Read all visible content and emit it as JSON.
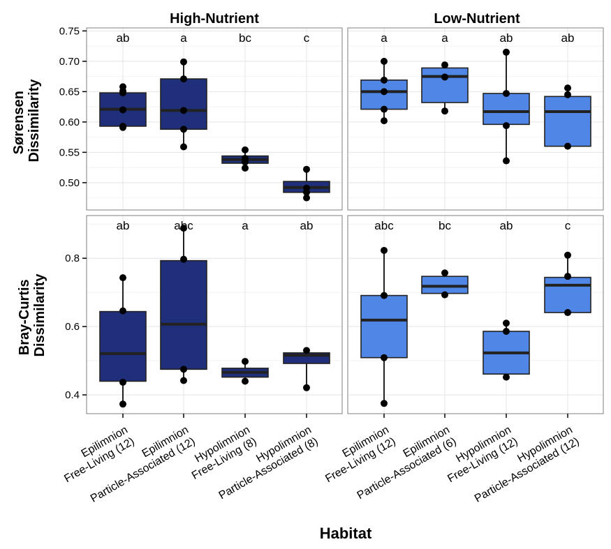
{
  "chart_data": {
    "type": "box",
    "xlabel": "Habitat",
    "colors": {
      "high": "#1f2f7a",
      "low": "#5086e6",
      "median": "#222222",
      "point": "#000000",
      "grid_major": "#e6e6e6",
      "grid_minor": "#f2f2f2",
      "panel_border": "#7f7f7f"
    },
    "columns": [
      "High-Nutrient",
      "Low-Nutrient"
    ],
    "rows": [
      {
        "ylabel": [
          "Sørensen",
          "Dissimilarity"
        ],
        "ylim": [
          0.455,
          0.755
        ],
        "ticks": [
          0.5,
          0.55,
          0.6,
          0.65,
          0.7,
          0.75
        ],
        "tick_labels": [
          "0.50",
          "0.55",
          "0.60",
          "0.65",
          "0.70",
          "0.75"
        ]
      },
      {
        "ylabel": [
          "Bray-Curtis",
          "Dissimilarity"
        ],
        "ylim": [
          0.345,
          0.925
        ],
        "ticks": [
          0.4,
          0.6,
          0.8
        ],
        "tick_labels": [
          "0.4",
          "0.6",
          "0.8"
        ]
      }
    ],
    "categories": {
      "High-Nutrient": [
        [
          "Epilimnion",
          "Free-Living (12)"
        ],
        [
          "Epilimnion",
          "Particle-Associated (12)"
        ],
        [
          "Hypolimnion",
          "Free-Living (8)"
        ],
        [
          "Hypolimnion",
          "Particle-Associated (8)"
        ]
      ],
      "Low-Nutrient": [
        [
          "Epilimnion",
          "Free-Living (12)"
        ],
        [
          "Epilimnion",
          "Particle-Associated (6)"
        ],
        [
          "Hypolimnion",
          "Free-Living (12)"
        ],
        [
          "Hypolimnion",
          "Particle-Associated (12)"
        ]
      ]
    },
    "panels": [
      {
        "row": 0,
        "col": 0,
        "fill": "high",
        "letters": [
          "ab",
          "a",
          "bc",
          "c"
        ],
        "boxes": [
          {
            "low": 0.591,
            "q1": 0.593,
            "median": 0.621,
            "q3": 0.648,
            "high": 0.658,
            "points": [
              0.591,
              0.593,
              0.62,
              0.648,
              0.651,
              0.658
            ]
          },
          {
            "low": 0.559,
            "q1": 0.588,
            "median": 0.619,
            "q3": 0.671,
            "high": 0.699,
            "points": [
              0.559,
              0.588,
              0.619,
              0.671,
              0.699
            ]
          },
          {
            "low": 0.524,
            "q1": 0.532,
            "median": 0.538,
            "q3": 0.544,
            "high": 0.554,
            "points": [
              0.524,
              0.534,
              0.54,
              0.554
            ]
          },
          {
            "low": 0.475,
            "q1": 0.484,
            "median": 0.492,
            "q3": 0.502,
            "high": 0.522,
            "points": [
              0.475,
              0.484,
              0.491,
              0.522
            ]
          }
        ]
      },
      {
        "row": 0,
        "col": 1,
        "fill": "low",
        "letters": [
          "a",
          "a",
          "ab",
          "ab"
        ],
        "boxes": [
          {
            "low": 0.602,
            "q1": 0.621,
            "median": 0.65,
            "q3": 0.669,
            "high": 0.7,
            "points": [
              0.602,
              0.621,
              0.65,
              0.669,
              0.7
            ]
          },
          {
            "low": 0.618,
            "q1": 0.632,
            "median": 0.675,
            "q3": 0.689,
            "high": 0.694,
            "points": [
              0.618,
              0.674,
              0.694
            ]
          },
          {
            "low": 0.536,
            "q1": 0.596,
            "median": 0.617,
            "q3": 0.647,
            "high": 0.715,
            "points": [
              0.536,
              0.594,
              0.647,
              0.715
            ]
          },
          {
            "low": 0.56,
            "q1": 0.56,
            "median": 0.617,
            "q3": 0.642,
            "high": 0.656,
            "points": [
              0.56,
              0.645,
              0.656
            ]
          }
        ]
      },
      {
        "row": 1,
        "col": 0,
        "fill": "high",
        "letters": [
          "ab",
          "abc",
          "a",
          "ab"
        ],
        "boxes": [
          {
            "low": 0.373,
            "q1": 0.44,
            "median": 0.521,
            "q3": 0.644,
            "high": 0.743,
            "points": [
              0.373,
              0.437,
              0.646,
              0.743
            ]
          },
          {
            "low": 0.442,
            "q1": 0.475,
            "median": 0.607,
            "q3": 0.793,
            "high": 0.888,
            "points": [
              0.442,
              0.475,
              0.797,
              0.888
            ]
          },
          {
            "low": 0.44,
            "q1": 0.452,
            "median": 0.466,
            "q3": 0.478,
            "high": 0.498,
            "points": [
              0.44,
              0.498
            ]
          },
          {
            "low": 0.421,
            "q1": 0.492,
            "median": 0.516,
            "q3": 0.523,
            "high": 0.53,
            "points": [
              0.421,
              0.53
            ]
          }
        ]
      },
      {
        "row": 1,
        "col": 1,
        "fill": "low",
        "letters": [
          "abc",
          "bc",
          "ab",
          "c"
        ],
        "boxes": [
          {
            "low": 0.375,
            "q1": 0.509,
            "median": 0.619,
            "q3": 0.691,
            "high": 0.823,
            "points": [
              0.375,
              0.509,
              0.691,
              0.823
            ]
          },
          {
            "low": 0.693,
            "q1": 0.697,
            "median": 0.718,
            "q3": 0.747,
            "high": 0.757,
            "points": [
              0.693,
              0.757
            ]
          },
          {
            "low": 0.452,
            "q1": 0.461,
            "median": 0.523,
            "q3": 0.586,
            "high": 0.61,
            "points": [
              0.452,
              0.586,
              0.61
            ]
          },
          {
            "low": 0.641,
            "q1": 0.641,
            "median": 0.721,
            "q3": 0.744,
            "high": 0.809,
            "points": [
              0.641,
              0.747,
              0.809
            ]
          }
        ]
      }
    ]
  }
}
